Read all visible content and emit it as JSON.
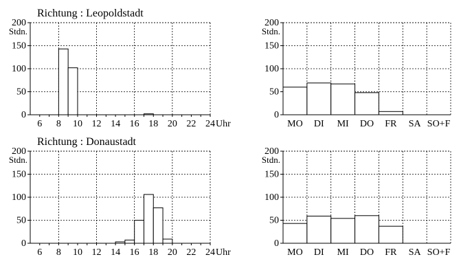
{
  "chart_data": [
    {
      "type": "bar",
      "title": "Richtung : Leopoldstadt",
      "ylabel": "Stdn.",
      "xlabel": "Uhr",
      "ylim": [
        0,
        200
      ],
      "yticks": [
        "200",
        "150",
        "100",
        "50",
        "0"
      ],
      "xlim": [
        5,
        24
      ],
      "xticks": [
        "6",
        "8",
        "10",
        "12",
        "14",
        "16",
        "18",
        "20",
        "22",
        "24"
      ],
      "x": [
        5,
        6,
        7,
        8,
        9,
        10,
        11,
        12,
        13,
        14,
        15,
        16,
        17,
        18,
        19,
        20,
        21,
        22,
        23
      ],
      "values": [
        0,
        0,
        0,
        143,
        102,
        0,
        0,
        0,
        0,
        0,
        0,
        0,
        2,
        0,
        0,
        0,
        0,
        0,
        0
      ],
      "grid": true
    },
    {
      "type": "bar",
      "title": "",
      "ylabel": "Stdn.",
      "xlabel": "",
      "ylim": [
        0,
        200
      ],
      "yticks": [
        "200",
        "150",
        "100",
        "50",
        "0"
      ],
      "categories": [
        "MO",
        "DI",
        "MI",
        "DO",
        "FR",
        "SA",
        "SO+F"
      ],
      "values": [
        60,
        69,
        67,
        48,
        7,
        0,
        0
      ],
      "grid": true
    },
    {
      "type": "bar",
      "title": "Richtung : Donaustadt",
      "ylabel": "Stdn.",
      "xlabel": "Uhr",
      "ylim": [
        0,
        200
      ],
      "yticks": [
        "200",
        "150",
        "100",
        "50",
        "0"
      ],
      "xlim": [
        5,
        24
      ],
      "xticks": [
        "6",
        "8",
        "10",
        "12",
        "14",
        "16",
        "18",
        "20",
        "22",
        "24"
      ],
      "x": [
        5,
        6,
        7,
        8,
        9,
        10,
        11,
        12,
        13,
        14,
        15,
        16,
        17,
        18,
        19,
        20,
        21,
        22,
        23
      ],
      "values": [
        0,
        0,
        0,
        0,
        0,
        0,
        0,
        0,
        0,
        3,
        7,
        50,
        106,
        77,
        9,
        0,
        0,
        0,
        0
      ],
      "grid": true
    },
    {
      "type": "bar",
      "title": "",
      "ylabel": "Stdn.",
      "xlabel": "",
      "ylim": [
        0,
        200
      ],
      "yticks": [
        "200",
        "150",
        "100",
        "50",
        "0"
      ],
      "categories": [
        "MO",
        "DI",
        "MI",
        "DO",
        "FR",
        "SA",
        "SO+F"
      ],
      "values": [
        43,
        59,
        54,
        60,
        37,
        0,
        0
      ],
      "grid": true
    }
  ]
}
